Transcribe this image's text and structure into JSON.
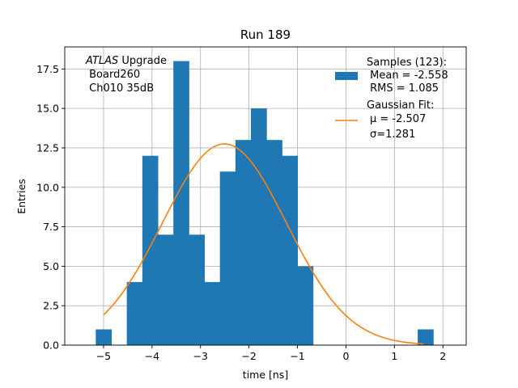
{
  "chart_data": {
    "type": "bar",
    "title": "Run 189",
    "xlabel": "time [ns]",
    "ylabel": "Entries",
    "xlim": [
      -5.8,
      2.48
    ],
    "ylim": [
      0,
      18.9
    ],
    "xticks": [
      -5,
      -4,
      -3,
      -2,
      -1,
      0,
      1,
      2
    ],
    "xtick_labels": [
      "−5",
      "−4",
      "−3",
      "−2",
      "−1",
      "0",
      "1",
      "2"
    ],
    "yticks": [
      0,
      2.5,
      5,
      7.5,
      10,
      12.5,
      15,
      17.5
    ],
    "ytick_labels": [
      "0.0",
      "2.5",
      "5.0",
      "7.5",
      "10.0",
      "12.5",
      "15.0",
      "17.5"
    ],
    "grid": true,
    "bins": [
      {
        "left": -5.16,
        "right": -4.84,
        "count": 1
      },
      {
        "left": -4.52,
        "right": -4.2,
        "count": 4
      },
      {
        "left": -4.2,
        "right": -3.88,
        "count": 12
      },
      {
        "left": -3.88,
        "right": -3.56,
        "count": 7
      },
      {
        "left": -3.56,
        "right": -3.24,
        "count": 18
      },
      {
        "left": -3.24,
        "right": -2.92,
        "count": 7
      },
      {
        "left": -2.92,
        "right": -2.6,
        "count": 4
      },
      {
        "left": -2.6,
        "right": -2.28,
        "count": 11
      },
      {
        "left": -2.28,
        "right": -1.96,
        "count": 13
      },
      {
        "left": -1.96,
        "right": -1.64,
        "count": 15
      },
      {
        "left": -1.64,
        "right": -1.32,
        "count": 13
      },
      {
        "left": -1.32,
        "right": -1.0,
        "count": 12
      },
      {
        "left": -1.0,
        "right": -0.68,
        "count": 5
      },
      {
        "left": 1.48,
        "right": 1.8,
        "count": 1
      }
    ],
    "fit": {
      "type": "gaussian",
      "mu": -2.507,
      "sigma": 1.281,
      "amplitude": 12.75,
      "x_range": [
        -5.0,
        1.6
      ]
    },
    "legend": {
      "placement": "upper-right",
      "hist_lines": [
        "Samples (123):",
        " Mean = -2.558",
        " RMS = 1.085"
      ],
      "fit_title": "Gaussian Fit:",
      "fit_mu_label": "μ = -2.507",
      "fit_sigma_label": "σ=1.281"
    },
    "annotation": {
      "italic": "ATLAS",
      "rest": " Upgrade",
      "line2": " Board260",
      "line3": " Ch010 35dB"
    },
    "colors": {
      "hist": "#1f77b4",
      "fit": "#ff7f0e"
    }
  }
}
